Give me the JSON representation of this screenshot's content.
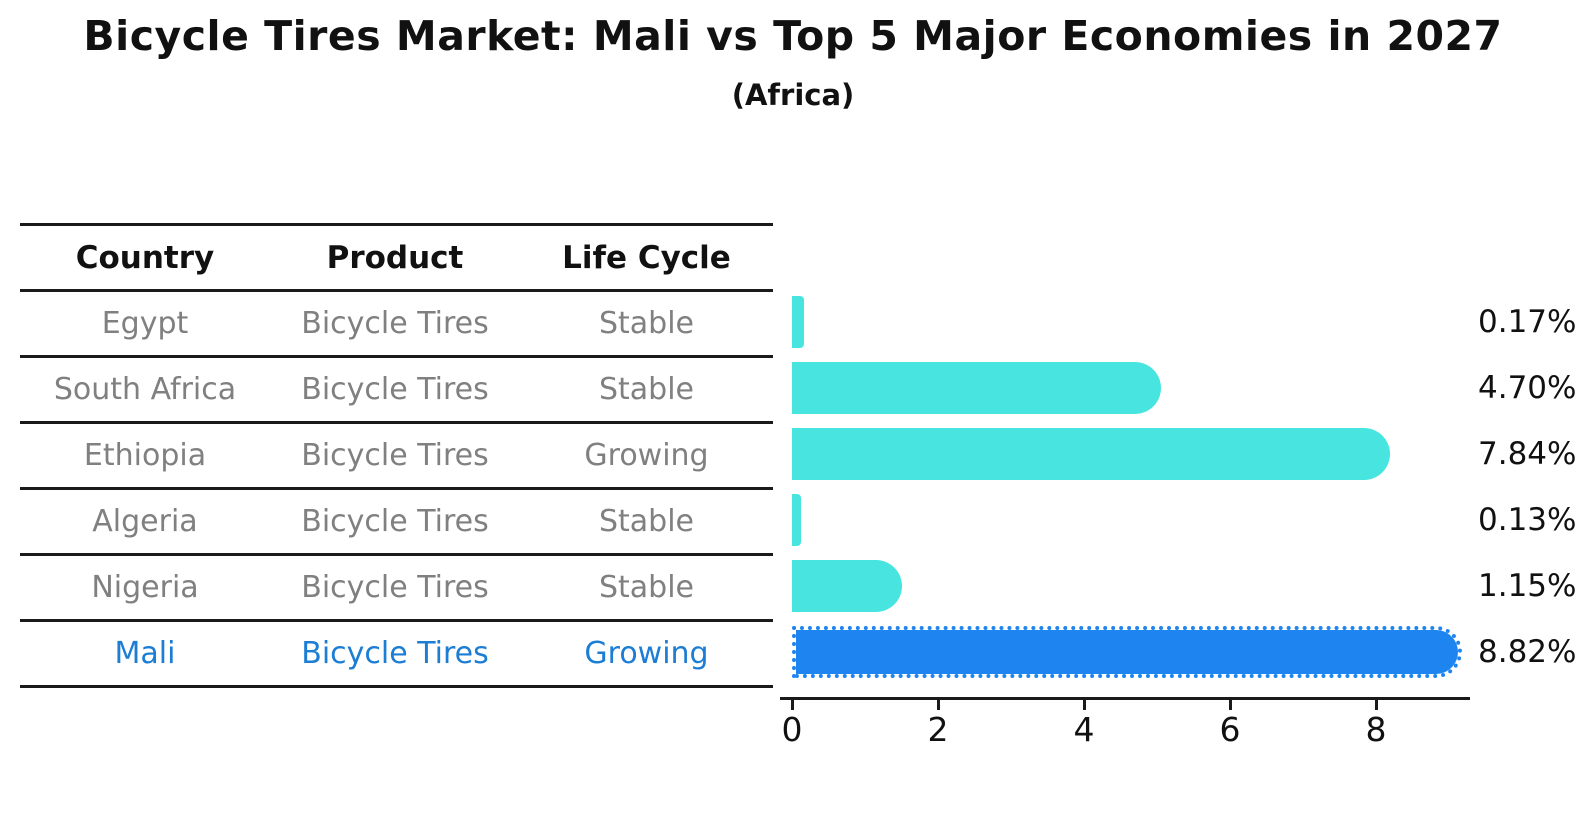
{
  "header": {
    "title": "Bicycle Tires Market: Mali vs Top 5 Major Economies in 2027",
    "subtitle": "(Africa)"
  },
  "table": {
    "headers": [
      "Country",
      "Product",
      "Life Cycle"
    ],
    "rows": [
      {
        "country": "Egypt",
        "product": "Bicycle Tires",
        "life_cycle": "Stable",
        "highlight": false
      },
      {
        "country": "South Africa",
        "product": "Bicycle Tires",
        "life_cycle": "Stable",
        "highlight": false
      },
      {
        "country": "Ethiopia",
        "product": "Bicycle Tires",
        "life_cycle": "Growing",
        "highlight": false
      },
      {
        "country": "Algeria",
        "product": "Bicycle Tires",
        "life_cycle": "Stable",
        "highlight": false
      },
      {
        "country": "Nigeria",
        "product": "Bicycle Tires",
        "life_cycle": "Stable",
        "highlight": false
      },
      {
        "country": "Mali",
        "product": "Bicycle Tires",
        "life_cycle": "Growing",
        "highlight": true
      }
    ]
  },
  "chart_data": {
    "type": "bar",
    "orientation": "horizontal",
    "title": "Bicycle Tires Market: Mali vs Top 5 Major Economies in 2027",
    "subtitle": "(Africa)",
    "categories": [
      "Egypt",
      "South Africa",
      "Ethiopia",
      "Algeria",
      "Nigeria",
      "Mali"
    ],
    "values": [
      0.17,
      4.7,
      7.84,
      0.13,
      1.15,
      8.82
    ],
    "value_labels": [
      "0.17%",
      "4.70%",
      "7.84%",
      "0.13%",
      "1.15%",
      "8.82%"
    ],
    "x_ticks": [
      0,
      2,
      4,
      6,
      8
    ],
    "xlim": [
      0,
      9.3
    ],
    "grid": false,
    "legend": "none",
    "highlight_index": 5,
    "bar_color_default": "#48e5e0",
    "bar_color_highlight": "#1e85f0",
    "highlight_text_color": "#1c7dd4"
  }
}
